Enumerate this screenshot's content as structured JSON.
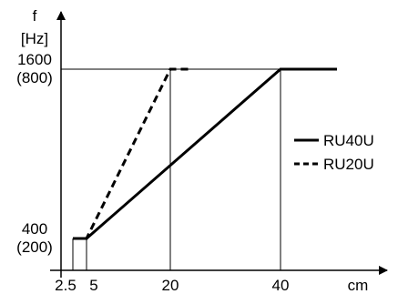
{
  "chart_data": {
    "type": "line",
    "ylabel": "f",
    "yunit": "[Hz]",
    "xlabel": "cm",
    "xticks": [
      {
        "value": 2.5,
        "label": "2.5"
      },
      {
        "value": 5,
        "label": "5"
      },
      {
        "value": 20,
        "label": "20"
      },
      {
        "value": 40,
        "label": "40"
      }
    ],
    "yticks": [
      {
        "value": 400,
        "label": "400",
        "sublabel": "(200)"
      },
      {
        "value": 1600,
        "label": "1600",
        "sublabel": "(800)"
      }
    ],
    "xlim": [
      0,
      47
    ],
    "ylim": [
      0,
      1600
    ],
    "reference_lines": {
      "vertical": [
        2.5,
        5,
        20,
        40
      ],
      "horizontal": [
        1600
      ]
    },
    "series": [
      {
        "name": "RU40U",
        "style": "solid",
        "points": [
          [
            2.5,
            400
          ],
          [
            5,
            400
          ],
          [
            40,
            1600
          ],
          [
            46,
            1600
          ]
        ]
      },
      {
        "name": "RU20U",
        "style": "dashed",
        "points": [
          [
            2.5,
            400
          ],
          [
            5,
            400
          ],
          [
            20,
            1600
          ],
          [
            24,
            1600
          ]
        ]
      }
    ],
    "legend_position": "right"
  }
}
